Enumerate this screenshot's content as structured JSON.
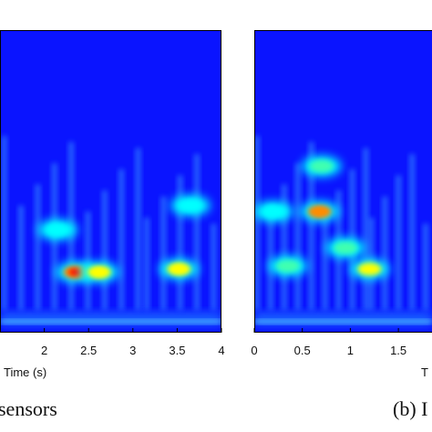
{
  "chart_data": [
    {
      "type": "heatmap",
      "panel": "left",
      "xlabel": "Time (s)",
      "x_ticks": [
        2,
        2.5,
        3,
        3.5,
        4
      ],
      "xlim": [
        1.5,
        4
      ],
      "caption": "sensors",
      "colormap": [
        "#00008f",
        "#0000ff",
        "#00ffff",
        "#ffff00",
        "#ff0000"
      ],
      "hotspots": [
        {
          "t": 2.35,
          "f": 0.2,
          "intensity": 1.0
        },
        {
          "t": 2.62,
          "f": 0.2,
          "intensity": 0.65
        },
        {
          "t": 3.52,
          "f": 0.21,
          "intensity": 0.7
        },
        {
          "t": 2.15,
          "f": 0.34,
          "intensity": 0.35
        },
        {
          "t": 3.65,
          "f": 0.42,
          "intensity": 0.35
        }
      ]
    },
    {
      "type": "heatmap",
      "panel": "right",
      "xlabel": "T",
      "x_ticks": [
        0,
        0.5,
        1,
        1.5
      ],
      "xlim": [
        0,
        1.85
      ],
      "caption": "(b) I",
      "colormap": [
        "#00008f",
        "#0000ff",
        "#00ffff",
        "#ffff00",
        "#ff0000"
      ],
      "hotspots": [
        {
          "t": 0.68,
          "f": 0.4,
          "intensity": 0.85
        },
        {
          "t": 0.7,
          "f": 0.55,
          "intensity": 0.55
        },
        {
          "t": 0.35,
          "f": 0.22,
          "intensity": 0.55
        },
        {
          "t": 1.2,
          "f": 0.21,
          "intensity": 0.6
        },
        {
          "t": 0.95,
          "f": 0.28,
          "intensity": 0.45
        },
        {
          "t": 0.2,
          "f": 0.4,
          "intensity": 0.3
        }
      ]
    }
  ]
}
